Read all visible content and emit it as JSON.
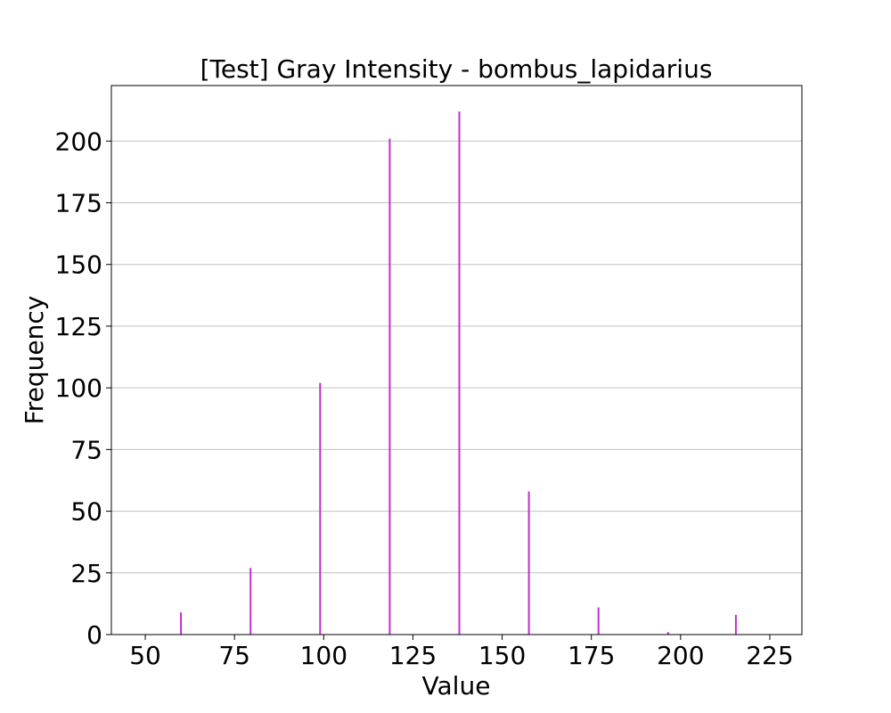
{
  "chart_data": {
    "type": "bar",
    "title": "[Test] Gray Intensity - bombus_lapidarius",
    "xlabel": "Value",
    "ylabel": "Frequency",
    "xlim": [
      40.5,
      234
    ],
    "ylim": [
      0,
      222.5
    ],
    "xticks": [
      50,
      75,
      100,
      125,
      150,
      175,
      200,
      225
    ],
    "yticks": [
      0,
      25,
      50,
      75,
      100,
      125,
      150,
      175,
      200
    ],
    "grid": "y",
    "bar_color": "#c030d0",
    "bars": [
      {
        "x": 60,
        "value": 9
      },
      {
        "x": 79.5,
        "value": 27
      },
      {
        "x": 99,
        "value": 102
      },
      {
        "x": 118.5,
        "value": 201
      },
      {
        "x": 138,
        "value": 212
      },
      {
        "x": 157.5,
        "value": 58
      },
      {
        "x": 177,
        "value": 11
      },
      {
        "x": 196.5,
        "value": 1
      },
      {
        "x": 215.5,
        "value": 8
      }
    ]
  }
}
